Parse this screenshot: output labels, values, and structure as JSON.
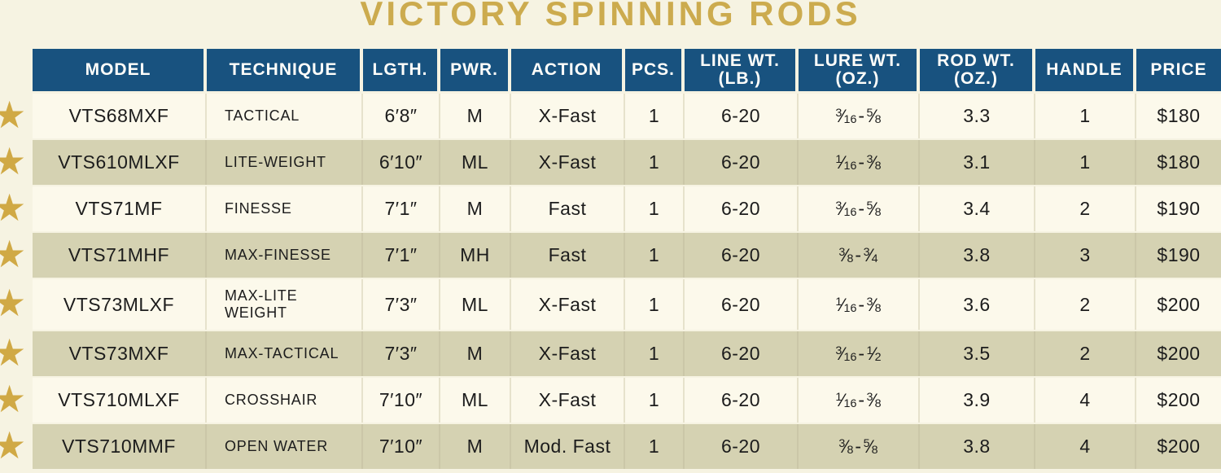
{
  "title": "VICTORY SPINNING RODS",
  "colors": {
    "title_gold": "#ccab4e",
    "star_gold": "#d0a945",
    "header_blue": "#18527f",
    "header_text": "#fffefa",
    "row_light": "#fcf9eb",
    "row_dark": "#d5d2b2",
    "page_background": "#f6f3e2",
    "body_text": "#1c1c1c"
  },
  "table": {
    "headers": [
      "MODEL",
      "TECHNIQUE",
      "LGTH.",
      "PWR.",
      "ACTION",
      "PCS.",
      "LINE WT.\n(LB.)",
      "LURE WT.\n(OZ.)",
      "ROD WT.\n(OZ.)",
      "HANDLE",
      "PRICE"
    ],
    "rows": [
      {
        "star": "★",
        "model": "VTS68MXF",
        "technique": "TACTICAL",
        "length": "6′8″",
        "power": "M",
        "action": "X-Fast",
        "pcs": "1",
        "line_wt": "6-20",
        "lure_wt": "3/16-5/8",
        "rod_wt": "3.3",
        "handle": "1",
        "price": "$180"
      },
      {
        "star": "★",
        "model": "VTS610MLXF",
        "technique": "LITE-WEIGHT",
        "length": "6′10″",
        "power": "ML",
        "action": "X-Fast",
        "pcs": "1",
        "line_wt": "6-20",
        "lure_wt": "1/16-3/8",
        "rod_wt": "3.1",
        "handle": "1",
        "price": "$180"
      },
      {
        "star": "★",
        "model": "VTS71MF",
        "technique": "FINESSE",
        "length": "7′1″",
        "power": "M",
        "action": "Fast",
        "pcs": "1",
        "line_wt": "6-20",
        "lure_wt": "3/16-5/8",
        "rod_wt": "3.4",
        "handle": "2",
        "price": "$190"
      },
      {
        "star": "★",
        "model": "VTS71MHF",
        "technique": "MAX-FINESSE",
        "length": "7′1″",
        "power": "MH",
        "action": "Fast",
        "pcs": "1",
        "line_wt": "6-20",
        "lure_wt": "3/8-3/4",
        "rod_wt": "3.8",
        "handle": "3",
        "price": "$190"
      },
      {
        "star": "★",
        "model": "VTS73MLXF",
        "technique": "MAX-LITE\nWEIGHT",
        "length": "7′3″",
        "power": "ML",
        "action": "X-Fast",
        "pcs": "1",
        "line_wt": "6-20",
        "lure_wt": "1/16-3/8",
        "rod_wt": "3.6",
        "handle": "2",
        "price": "$200"
      },
      {
        "star": "★",
        "model": "VTS73MXF",
        "technique": "MAX-TACTICAL",
        "length": "7′3″",
        "power": "M",
        "action": "X-Fast",
        "pcs": "1",
        "line_wt": "6-20",
        "lure_wt": "3/16-1/2",
        "rod_wt": "3.5",
        "handle": "2",
        "price": "$200"
      },
      {
        "star": "★",
        "model": "VTS710MLXF",
        "technique": "CROSSHAIR",
        "length": "7′10″",
        "power": "ML",
        "action": "X-Fast",
        "pcs": "1",
        "line_wt": "6-20",
        "lure_wt": "1/16-3/8",
        "rod_wt": "3.9",
        "handle": "4",
        "price": "$200"
      },
      {
        "star": "★",
        "model": "VTS710MMF",
        "technique": "OPEN WATER",
        "length": "7′10″",
        "power": "M",
        "action": "Mod. Fast",
        "pcs": "1",
        "line_wt": "6-20",
        "lure_wt": "3/8-5/8",
        "rod_wt": "3.8",
        "handle": "4",
        "price": "$200"
      }
    ]
  }
}
